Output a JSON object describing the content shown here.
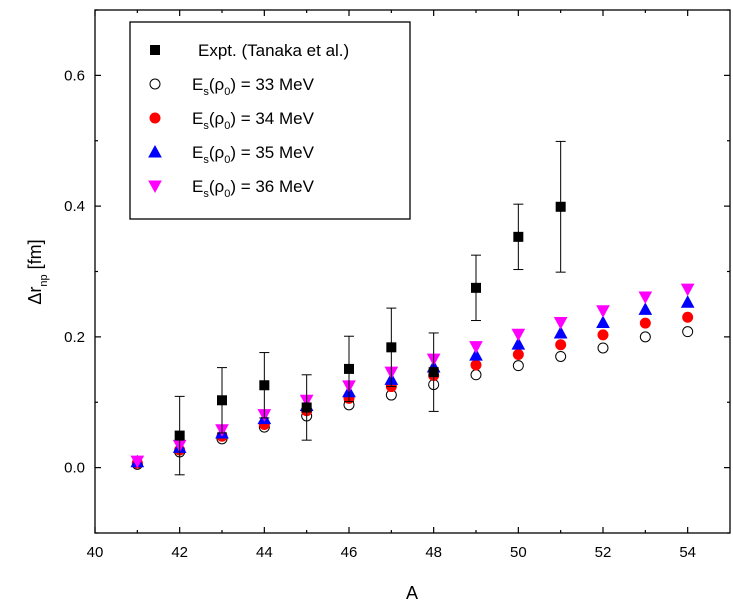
{
  "chart_data": {
    "type": "scatter",
    "xlabel": "A",
    "ylabel": {
      "main": "Δr",
      "sub": "np",
      "unit": " [fm]"
    },
    "xlim": [
      40,
      55
    ],
    "ylim": [
      -0.1,
      0.7
    ],
    "xticks": [
      40,
      42,
      44,
      46,
      48,
      50,
      52,
      54
    ],
    "xtick_labels": [
      "40",
      "42",
      "44",
      "46",
      "48",
      "50",
      "52",
      "54"
    ],
    "yticks": [
      0.0,
      0.2,
      0.4,
      0.6
    ],
    "ytick_labels": [
      "0.0",
      "0.2",
      "0.4",
      "0.6"
    ],
    "grid": false,
    "legend_position": "top-left",
    "series": [
      {
        "name": "Expt. (Tanaka et al.)",
        "marker": "square",
        "filled": true,
        "color": "#000000",
        "x": [
          42,
          43,
          44,
          45,
          46,
          47,
          48,
          49,
          50,
          51
        ],
        "y": [
          0.049,
          0.103,
          0.126,
          0.092,
          0.151,
          0.184,
          0.146,
          0.275,
          0.353,
          0.399
        ],
        "err": [
          0.06,
          0.05,
          0.05,
          0.05,
          0.05,
          0.06,
          0.06,
          0.05,
          0.05,
          0.1
        ]
      },
      {
        "name": "33 MeV",
        "legend": {
          "a": "E",
          "a_sub": "s",
          "b": "(ρ",
          "b_sub": "0",
          "c": ") = 33 MeV"
        },
        "marker": "circle",
        "filled": false,
        "color": "#000000",
        "x": [
          41,
          42,
          43,
          44,
          45,
          46,
          47,
          48,
          49,
          50,
          51,
          52,
          53,
          54
        ],
        "y": [
          0.005,
          0.024,
          0.044,
          0.062,
          0.079,
          0.096,
          0.111,
          0.127,
          0.142,
          0.156,
          0.17,
          0.183,
          0.2,
          0.208
        ]
      },
      {
        "name": "34 MeV",
        "legend": {
          "a": "E",
          "a_sub": "s",
          "b": "(ρ",
          "b_sub": "0",
          "c": ") = 34 MeV"
        },
        "marker": "circle",
        "filled": true,
        "color": "#ff0000",
        "x": [
          41,
          42,
          43,
          44,
          45,
          46,
          47,
          48,
          49,
          50,
          51,
          52,
          53,
          54
        ],
        "y": [
          0.007,
          0.027,
          0.048,
          0.066,
          0.087,
          0.106,
          0.124,
          0.141,
          0.157,
          0.173,
          0.188,
          0.203,
          0.221,
          0.23
        ]
      },
      {
        "name": "35 MeV",
        "legend": {
          "a": "E",
          "a_sub": "s",
          "b": "(ρ",
          "b_sub": "0",
          "c": ") = 35 MeV"
        },
        "marker": "triangle-up",
        "filled": true,
        "color": "#0000ff",
        "x": [
          41,
          42,
          43,
          44,
          45,
          46,
          47,
          48,
          49,
          50,
          51,
          52,
          53,
          54
        ],
        "y": [
          0.009,
          0.031,
          0.053,
          0.075,
          0.095,
          0.116,
          0.135,
          0.154,
          0.172,
          0.189,
          0.206,
          0.222,
          0.242,
          0.253
        ]
      },
      {
        "name": "36 MeV",
        "legend": {
          "a": "E",
          "a_sub": "s",
          "b": "(ρ",
          "b_sub": "0",
          "c": ") = 36 MeV"
        },
        "marker": "triangle-down",
        "filled": true,
        "color": "#ff00ff",
        "x": [
          41,
          42,
          43,
          44,
          45,
          46,
          47,
          48,
          49,
          50,
          51,
          52,
          53,
          54
        ],
        "y": [
          0.01,
          0.034,
          0.058,
          0.081,
          0.103,
          0.125,
          0.146,
          0.166,
          0.185,
          0.204,
          0.222,
          0.24,
          0.261,
          0.273
        ]
      }
    ]
  }
}
